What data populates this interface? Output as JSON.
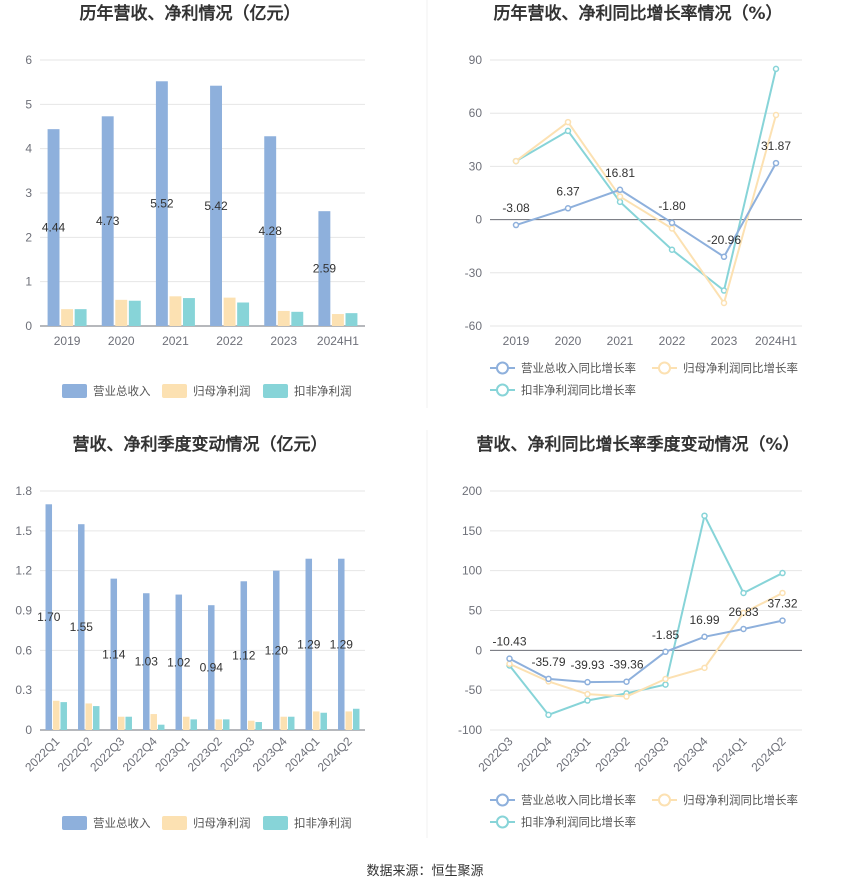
{
  "colors": {
    "revenue": "#8eb0dc",
    "net_profit": "#fce1b2",
    "deducted_profit": "#87d4d8",
    "grid": "#e6e6e6",
    "axis": "#6e7079"
  },
  "source_text": "数据来源：恒生聚源",
  "chart_data": [
    {
      "id": "annual-bar",
      "type": "bar",
      "title": "历年营收、净利情况（亿元）",
      "categories": [
        "2019",
        "2020",
        "2021",
        "2022",
        "2023",
        "2024H1"
      ],
      "ylim": [
        0,
        6
      ],
      "yticks": [
        0,
        1,
        2,
        3,
        4,
        5,
        6
      ],
      "label_series": 0,
      "series": [
        {
          "name": "营业总收入",
          "values": [
            4.44,
            4.73,
            5.52,
            5.42,
            4.28,
            2.59
          ]
        },
        {
          "name": "归母净利润",
          "values": [
            0.38,
            0.59,
            0.67,
            0.64,
            0.34,
            0.27
          ]
        },
        {
          "name": "扣非净利润",
          "values": [
            0.38,
            0.57,
            0.63,
            0.53,
            0.32,
            0.29
          ]
        }
      ]
    },
    {
      "id": "annual-growth",
      "type": "line",
      "title": "历年营收、净利同比增长率情况（%）",
      "categories": [
        "2019",
        "2020",
        "2021",
        "2022",
        "2023",
        "2024H1"
      ],
      "ylim": [
        -60,
        90
      ],
      "yticks": [
        -60,
        -30,
        0,
        30,
        60,
        90
      ],
      "label_series": 0,
      "series": [
        {
          "name": "营业总收入同比增长率",
          "values": [
            -3.08,
            6.37,
            16.81,
            -1.8,
            -20.96,
            31.87
          ]
        },
        {
          "name": "归母净利润同比增长率",
          "values": [
            33,
            55,
            13,
            -5,
            -47,
            59
          ]
        },
        {
          "name": "扣非净利润同比增长率",
          "values": [
            33,
            50,
            10,
            -17,
            -40,
            85
          ]
        }
      ]
    },
    {
      "id": "quarterly-bar",
      "type": "bar",
      "title": "营收、净利季度变动情况（亿元）",
      "categories": [
        "2022Q1",
        "2022Q2",
        "2022Q3",
        "2022Q4",
        "2023Q1",
        "2023Q2",
        "2023Q3",
        "2023Q4",
        "2024Q1",
        "2024Q2"
      ],
      "ylim": [
        0,
        1.8
      ],
      "yticks": [
        0,
        0.3,
        0.6,
        0.9,
        1.2,
        1.5,
        1.8
      ],
      "label_series": 0,
      "series": [
        {
          "name": "营业总收入",
          "values": [
            1.7,
            1.55,
            1.14,
            1.03,
            1.02,
            0.94,
            1.12,
            1.2,
            1.29,
            1.29
          ]
        },
        {
          "name": "归母净利润",
          "values": [
            0.22,
            0.2,
            0.1,
            0.12,
            0.1,
            0.08,
            0.07,
            0.1,
            0.14,
            0.14
          ]
        },
        {
          "name": "扣非净利润",
          "values": [
            0.21,
            0.18,
            0.1,
            0.04,
            0.08,
            0.08,
            0.06,
            0.1,
            0.13,
            0.16
          ]
        }
      ]
    },
    {
      "id": "quarterly-growth",
      "type": "line",
      "title": "营收、净利同比增长率季度变动情况（%）",
      "categories": [
        "2022Q3",
        "2022Q4",
        "2023Q1",
        "2023Q2",
        "2023Q3",
        "2023Q4",
        "2024Q1",
        "2024Q2"
      ],
      "ylim": [
        -100,
        200
      ],
      "yticks": [
        -100,
        -50,
        0,
        50,
        100,
        150,
        200
      ],
      "label_series": 0,
      "series": [
        {
          "name": "营业总收入同比增长率",
          "values": [
            -10.43,
            -35.79,
            -39.93,
            -39.36,
            -1.85,
            16.99,
            26.83,
            37.32
          ]
        },
        {
          "name": "归母净利润同比增长率",
          "values": [
            -17,
            -39,
            -55,
            -58,
            -36,
            -22,
            47,
            72
          ]
        },
        {
          "name": "扣非净利润同比增长率",
          "values": [
            -19,
            -81,
            -63,
            -54,
            -43,
            169,
            72,
            97
          ]
        }
      ]
    }
  ]
}
